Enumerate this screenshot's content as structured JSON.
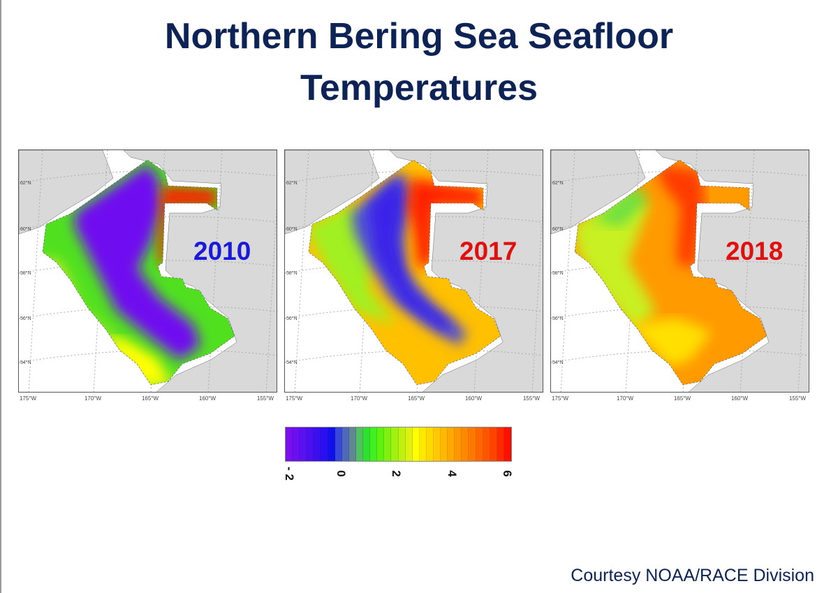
{
  "title_line1": "Northern Bering Sea Seafloor",
  "title_line2": "Temperatures",
  "panels": [
    {
      "year": "2010",
      "year_color": "#1a1adc"
    },
    {
      "year": "2017",
      "year_color": "#e01010"
    },
    {
      "year": "2018",
      "year_color": "#e01010"
    }
  ],
  "lat_labels": [
    "62°N",
    "60°N",
    "58°N",
    "56°N",
    "54°N"
  ],
  "lon_labels": [
    "175°W",
    "170°W",
    "165°W",
    "160°W",
    "155°W"
  ],
  "colorbar": {
    "min": -2,
    "max": 6,
    "tick_labels": [
      "- 2",
      "0",
      "2",
      "4",
      "6"
    ],
    "colors": [
      "#7a10f0",
      "#6a10f0",
      "#5a10f0",
      "#4a10f0",
      "#3a10f0",
      "#2a10f0",
      "#1010e8",
      "#3848d8",
      "#5068b8",
      "#608890",
      "#50c060",
      "#30e030",
      "#40f020",
      "#60f010",
      "#80f010",
      "#a0f010",
      "#c0f010",
      "#e0f010",
      "#ffff00",
      "#ffe800",
      "#ffd800",
      "#ffc800",
      "#ffb800",
      "#ffa800",
      "#ff9800",
      "#ff8800",
      "#ff7800",
      "#ff6600",
      "#ff5500",
      "#ff4400",
      "#ff2a00",
      "#ff1000"
    ]
  },
  "credit": "Courtesy NOAA/RACE Division"
}
